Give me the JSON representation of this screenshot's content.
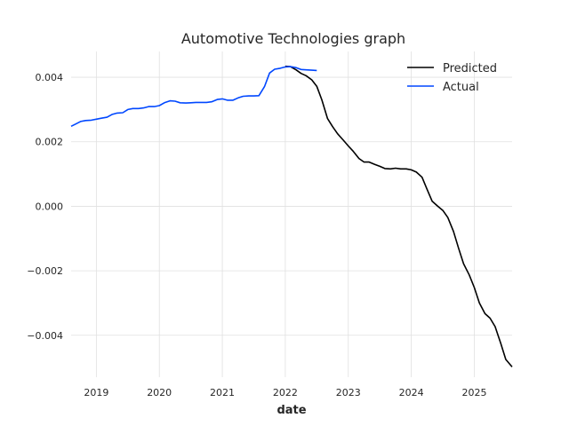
{
  "chart_data": {
    "type": "line",
    "title": "Automotive Technologies graph",
    "xlabel": "date",
    "ylabel": "",
    "grid": true,
    "legend_position": "top-right",
    "xlim": [
      2018.6,
      2025.6
    ],
    "ylim": [
      -0.0053,
      0.0048
    ],
    "x_ticks": [
      2019,
      2020,
      2021,
      2022,
      2023,
      2024,
      2025
    ],
    "x_tick_labels": [
      "2019",
      "2020",
      "2021",
      "2022",
      "2023",
      "2024",
      "2025"
    ],
    "y_ticks": [
      0.004,
      0.002,
      0.0,
      -0.002,
      -0.004
    ],
    "y_tick_labels": [
      "0.004",
      "0.002",
      "0.000",
      "−0.002",
      "−0.004"
    ],
    "series": [
      {
        "name": "Predicted",
        "color": "#000000",
        "x": [
          2022.0,
          2022.08,
          2022.17,
          2022.25,
          2022.33,
          2022.42,
          2022.5,
          2022.58,
          2022.67,
          2022.75,
          2022.83,
          2022.92,
          2023.0,
          2023.08,
          2023.17,
          2023.25,
          2023.33,
          2023.42,
          2023.5,
          2023.58,
          2023.67,
          2023.75,
          2023.83,
          2023.92,
          2024.0,
          2024.08,
          2024.17,
          2024.25,
          2024.33,
          2024.42,
          2024.5,
          2024.58,
          2024.67,
          2024.75,
          2024.83,
          2024.92,
          2025.0,
          2025.08,
          2025.17,
          2025.25,
          2025.33,
          2025.42,
          2025.5,
          2025.6
        ],
        "y": [
          0.00434,
          0.00433,
          0.00423,
          0.00412,
          0.00405,
          0.00392,
          0.00372,
          0.0033,
          0.00272,
          0.00247,
          0.00225,
          0.00205,
          0.00187,
          0.0017,
          0.00148,
          0.00137,
          0.00137,
          0.0013,
          0.00124,
          0.00117,
          0.00116,
          0.00118,
          0.00116,
          0.00116,
          0.00113,
          0.00106,
          0.0009,
          0.00053,
          0.00016,
          0.0,
          -0.00013,
          -0.00035,
          -0.00078,
          -0.0013,
          -0.00178,
          -0.00213,
          -0.00252,
          -0.003,
          -0.00333,
          -0.00347,
          -0.00373,
          -0.00425,
          -0.00475,
          -0.00498
        ]
      },
      {
        "name": "Actual",
        "color": "#0047ff",
        "x": [
          2018.6,
          2018.67,
          2018.75,
          2018.83,
          2018.92,
          2019.0,
          2019.08,
          2019.17,
          2019.25,
          2019.33,
          2019.42,
          2019.5,
          2019.58,
          2019.67,
          2019.75,
          2019.83,
          2019.92,
          2020.0,
          2020.08,
          2020.17,
          2020.25,
          2020.33,
          2020.42,
          2020.5,
          2020.58,
          2020.67,
          2020.75,
          2020.83,
          2020.92,
          2021.0,
          2021.08,
          2021.17,
          2021.25,
          2021.33,
          2021.42,
          2021.5,
          2021.58,
          2021.67,
          2021.75,
          2021.83,
          2021.92,
          2022.0,
          2022.08,
          2022.17,
          2022.25,
          2022.33,
          2022.42,
          2022.5
        ],
        "y": [
          0.00248,
          0.00255,
          0.00263,
          0.00266,
          0.00267,
          0.0027,
          0.00273,
          0.00276,
          0.00285,
          0.00289,
          0.0029,
          0.003,
          0.00303,
          0.00303,
          0.00305,
          0.00309,
          0.00309,
          0.00312,
          0.00321,
          0.00327,
          0.00326,
          0.00321,
          0.0032,
          0.00321,
          0.00322,
          0.00322,
          0.00322,
          0.00324,
          0.00331,
          0.00333,
          0.00329,
          0.00329,
          0.00336,
          0.00341,
          0.00342,
          0.00342,
          0.00343,
          0.00371,
          0.00413,
          0.00425,
          0.00428,
          0.00432,
          0.00433,
          0.0043,
          0.00424,
          0.00423,
          0.00422,
          0.00421
        ]
      }
    ]
  }
}
